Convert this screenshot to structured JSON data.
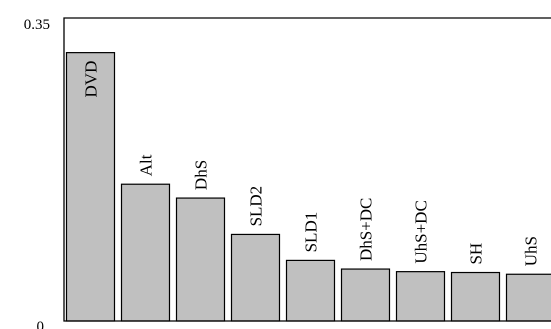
{
  "chart_data": {
    "type": "bar",
    "categories": [
      "DVD",
      "Alt",
      "DhS",
      "SLD2",
      "SLD1",
      "DhS+DC",
      "UhS+DC",
      "SH",
      "UhS"
    ],
    "values": [
      0.31,
      0.158,
      0.142,
      0.1,
      0.07,
      0.06,
      0.057,
      0.056,
      0.054
    ],
    "ylim": [
      0,
      0.35
    ],
    "y_tick_labels": [
      "0",
      "0.35"
    ],
    "title": "",
    "xlabel": "",
    "ylabel": "",
    "grid": false,
    "colors": {
      "bar_fill": "#c0c0c0",
      "bar_stroke": "#000000",
      "axis": "#000000",
      "background": "#ffffff"
    }
  }
}
